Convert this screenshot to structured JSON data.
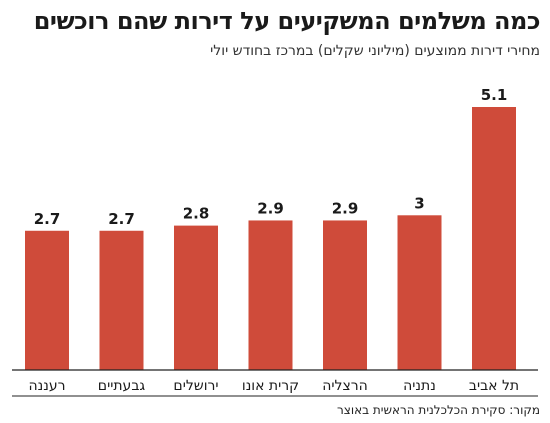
{
  "header": {
    "title": "כמה משלמים המשקיעים על דירות שהם רוכשים",
    "subtitle": "מחירי דירות ממוצעים (מיליוני שקלים) במרכז בחודש יולי"
  },
  "source": "מקור: סקירת הכלכלנית הראשית באוצר",
  "colors": {
    "bar": "#cf4b3a",
    "text": "#1a1a1a",
    "axis": "#222222"
  },
  "chart_data": {
    "type": "bar",
    "title": "כמה משלמים המשקיעים על דירות שהם רוכשים",
    "subtitle": "מחירי דירות ממוצעים (מיליוני שקלים) במרכז בחודש יולי",
    "categories": [
      "תל אביב",
      "נתניה",
      "הרצליה",
      "קרית אונו",
      "ירושלים",
      "גבעתיים",
      "רעננה"
    ],
    "values": [
      5.1,
      3,
      2.9,
      2.9,
      2.8,
      2.7,
      2.7
    ],
    "value_labels": [
      "5.1",
      "3",
      "2.9",
      "2.9",
      "2.8",
      "2.7",
      "2.7"
    ],
    "ylim": [
      0,
      5.1
    ],
    "order": "right-to-left",
    "grid": false,
    "legend": "none"
  }
}
